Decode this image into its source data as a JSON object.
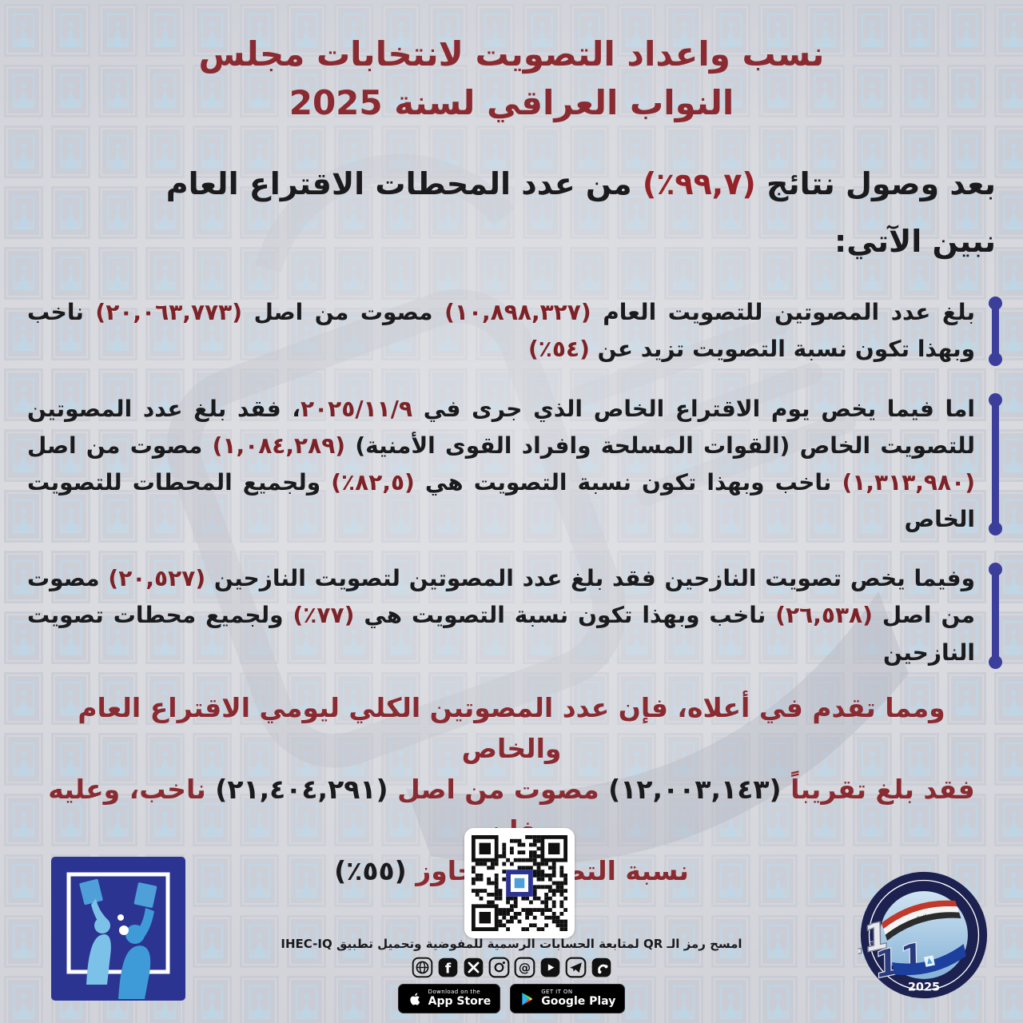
{
  "title": {
    "line1": "نسب واعداد التصويت لانتخابات مجلس",
    "line2": "النواب العراقي لسنة 2025"
  },
  "intro": {
    "segments": [
      {
        "t": "بعد وصول نتائج "
      },
      {
        "t": "(٪٩٩,٧)",
        "c": "red",
        "ltr": true
      },
      {
        "t": " من عدد المحطات الاقتراع العام"
      },
      {
        "br": true
      },
      {
        "t": "نبين الآتي:"
      }
    ]
  },
  "bullets": [
    {
      "segments": [
        {
          "t": "بلغ عدد المصوتين للتصويت العام "
        },
        {
          "t": "(١٠,٨٩٨,٣٢٧)",
          "c": "num",
          "ltr": true
        },
        {
          "t": " مصوت من اصل "
        },
        {
          "t": "(٢٠,٠٦٣,٧٧٣)",
          "c": "num",
          "ltr": true
        },
        {
          "t": " ناخب وبهذا تكون نسبة التصويت تزيد عن "
        },
        {
          "t": "(٪٥٤)",
          "c": "num",
          "ltr": true
        }
      ]
    },
    {
      "segments": [
        {
          "t": "اما فيما يخص يوم الاقتراع الخاص الذي جرى في "
        },
        {
          "t": "٢٠٢٥/١١/٩",
          "c": "num",
          "ltr": true
        },
        {
          "t": "، فقد بلغ عدد المصوتين للتصويت الخاص (القوات المسلحة وافراد القوى الأمنية) "
        },
        {
          "t": "(١,٠٨٤,٢٨٩)",
          "c": "num",
          "ltr": true
        },
        {
          "t": " مصوت من اصل "
        },
        {
          "t": "(١,٣١٣,٩٨٠)",
          "c": "num",
          "ltr": true
        },
        {
          "t": " ناخب وبهذا تكون نسبة التصويت هي "
        },
        {
          "t": "(٪٨٢,٥)",
          "c": "num",
          "ltr": true
        },
        {
          "t": " ولجميع المحطات للتصويت الخاص"
        }
      ]
    },
    {
      "segments": [
        {
          "t": "وفيما يخص تصويت النازحين فقد بلغ عدد المصوتين لتصويت النازحين "
        },
        {
          "t": "(٢٠,٥٢٧)",
          "c": "num",
          "ltr": true
        },
        {
          "t": " مصوت من اصل "
        },
        {
          "t": "(٢٦,٥٣٨)",
          "c": "num",
          "ltr": true
        },
        {
          "t": " ناخب وبهذا تكون نسبة التصويت هي "
        },
        {
          "t": "(٪٧٧)",
          "c": "num",
          "ltr": true
        },
        {
          "t": " ولجميع محطات تصويت النازحين"
        }
      ]
    }
  ],
  "conclusion": {
    "segments": [
      {
        "t": "ومما تقدم في أعلاه، فإن عدد المصوتين الكلي ليومي الاقتراع العام والخاص"
      },
      {
        "br": true
      },
      {
        "t": "فقد بلغ تقريباً "
      },
      {
        "t": "(١٢,٠٠٣,١٤٣)",
        "c": "dark",
        "ltr": true
      },
      {
        "t": " مصوت من اصل "
      },
      {
        "t": "(٢١,٤٠٤,٢٩١)",
        "c": "dark",
        "ltr": true
      },
      {
        "t": " ناخب، وعليه فإن"
      },
      {
        "br": true
      },
      {
        "t": "نسبة التصويت تتجاوز "
      },
      {
        "t": "(٪٥٥)",
        "c": "dark",
        "ltr": true
      }
    ]
  },
  "footer": {
    "qr_caption": "امسح رمز الـ QR لمتابعة الحسابات الرسمية للمفوضية وتحميل تطبيق IHEC-IQ",
    "social_icons": [
      "globe",
      "facebook",
      "x",
      "instagram",
      "threads",
      "youtube",
      "telegram",
      "phone"
    ],
    "appstore_small": "Download on the",
    "appstore_big": "App Store",
    "gplay_small": "GET IT ON",
    "gplay_big": "Google Play",
    "seal_text": "انتخابات مجلس النواب العراقي - هەڵبژاردنی ئەنجومەنی نوێنەرانی عێراق",
    "seal_number": "11",
    "seal_year": "2025"
  },
  "colors": {
    "title_red": "#8a2b31",
    "number_red": "#7d2227",
    "text_dark": "#1b1b1d",
    "accent_blue": "#3b3f9b",
    "logo_navy": "#2b3490",
    "logo_light_blue": "#5fb0e0"
  }
}
